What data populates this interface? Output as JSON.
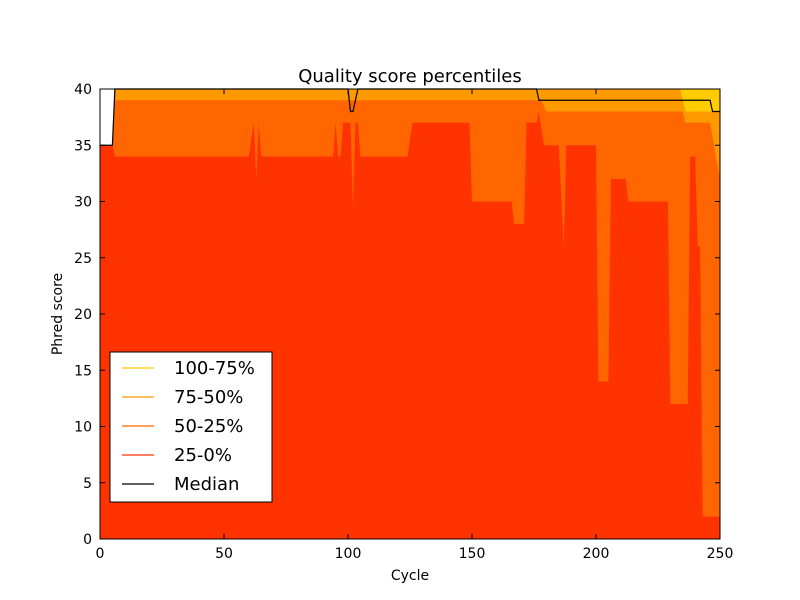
{
  "chart_data": {
    "type": "area",
    "title": "Quality score percentiles",
    "xlabel": "Cycle",
    "ylabel": "Phred score",
    "xlim": [
      0,
      250
    ],
    "ylim": [
      0,
      40
    ],
    "xticks": [
      0,
      50,
      100,
      150,
      200,
      250
    ],
    "yticks": [
      0,
      5,
      10,
      15,
      20,
      25,
      30,
      35,
      40
    ],
    "grid": "horizontal dotted",
    "legend_position": "lower-left",
    "series": [
      {
        "name": "100-75%",
        "color": "#ffcc00",
        "points": [
          [
            0,
            35
          ],
          [
            5,
            35
          ],
          [
            6,
            40
          ],
          [
            250,
            40
          ]
        ]
      },
      {
        "name": "75-50%",
        "color": "#ff9900",
        "points": [
          [
            0,
            35
          ],
          [
            5,
            35
          ],
          [
            6,
            40
          ],
          [
            234,
            40
          ],
          [
            236,
            38
          ],
          [
            250,
            38
          ]
        ]
      },
      {
        "name": "50-25%",
        "color": "#ff6600",
        "points": [
          [
            0,
            35
          ],
          [
            5,
            35
          ],
          [
            6,
            39
          ],
          [
            178,
            39
          ],
          [
            180,
            38
          ],
          [
            235,
            38
          ],
          [
            236,
            37
          ],
          [
            246,
            37
          ],
          [
            250,
            32
          ]
        ]
      },
      {
        "name": "25-0%",
        "color": "#ff3300",
        "points": [
          [
            0,
            35
          ],
          [
            5,
            35
          ],
          [
            6,
            34
          ],
          [
            60,
            34
          ],
          [
            62,
            37
          ],
          [
            63,
            32
          ],
          [
            64,
            37
          ],
          [
            65,
            34
          ],
          [
            94,
            34
          ],
          [
            95,
            37
          ],
          [
            96,
            34
          ],
          [
            97,
            34
          ],
          [
            98,
            37
          ],
          [
            101,
            37
          ],
          [
            102,
            29.5
          ],
          [
            103,
            37
          ],
          [
            104,
            37
          ],
          [
            105,
            34
          ],
          [
            124,
            34
          ],
          [
            126,
            37
          ],
          [
            149,
            37
          ],
          [
            150,
            30
          ],
          [
            166,
            30
          ],
          [
            167,
            28
          ],
          [
            171,
            28
          ],
          [
            172,
            37
          ],
          [
            176,
            37
          ],
          [
            177,
            38
          ],
          [
            179,
            35
          ],
          [
            185,
            35
          ],
          [
            187,
            26
          ],
          [
            188,
            35
          ],
          [
            200,
            35
          ],
          [
            201,
            14
          ],
          [
            205,
            14
          ],
          [
            206,
            32
          ],
          [
            211,
            32
          ],
          [
            212,
            32
          ],
          [
            213,
            30
          ],
          [
            229,
            30
          ],
          [
            230,
            12
          ],
          [
            237,
            12
          ],
          [
            238,
            34
          ],
          [
            240,
            34
          ],
          [
            241,
            26
          ],
          [
            242,
            26
          ],
          [
            243,
            2
          ],
          [
            250,
            2
          ]
        ]
      }
    ],
    "median": {
      "name": "Median",
      "color": "#000000",
      "points": [
        [
          0,
          35
        ],
        [
          5,
          35
        ],
        [
          6,
          40
        ],
        [
          100,
          40
        ],
        [
          101,
          38
        ],
        [
          102,
          38
        ],
        [
          103,
          39
        ],
        [
          104,
          40
        ],
        [
          176,
          40
        ],
        [
          177,
          39
        ],
        [
          246,
          39
        ],
        [
          247,
          38
        ],
        [
          250,
          38
        ]
      ]
    }
  }
}
